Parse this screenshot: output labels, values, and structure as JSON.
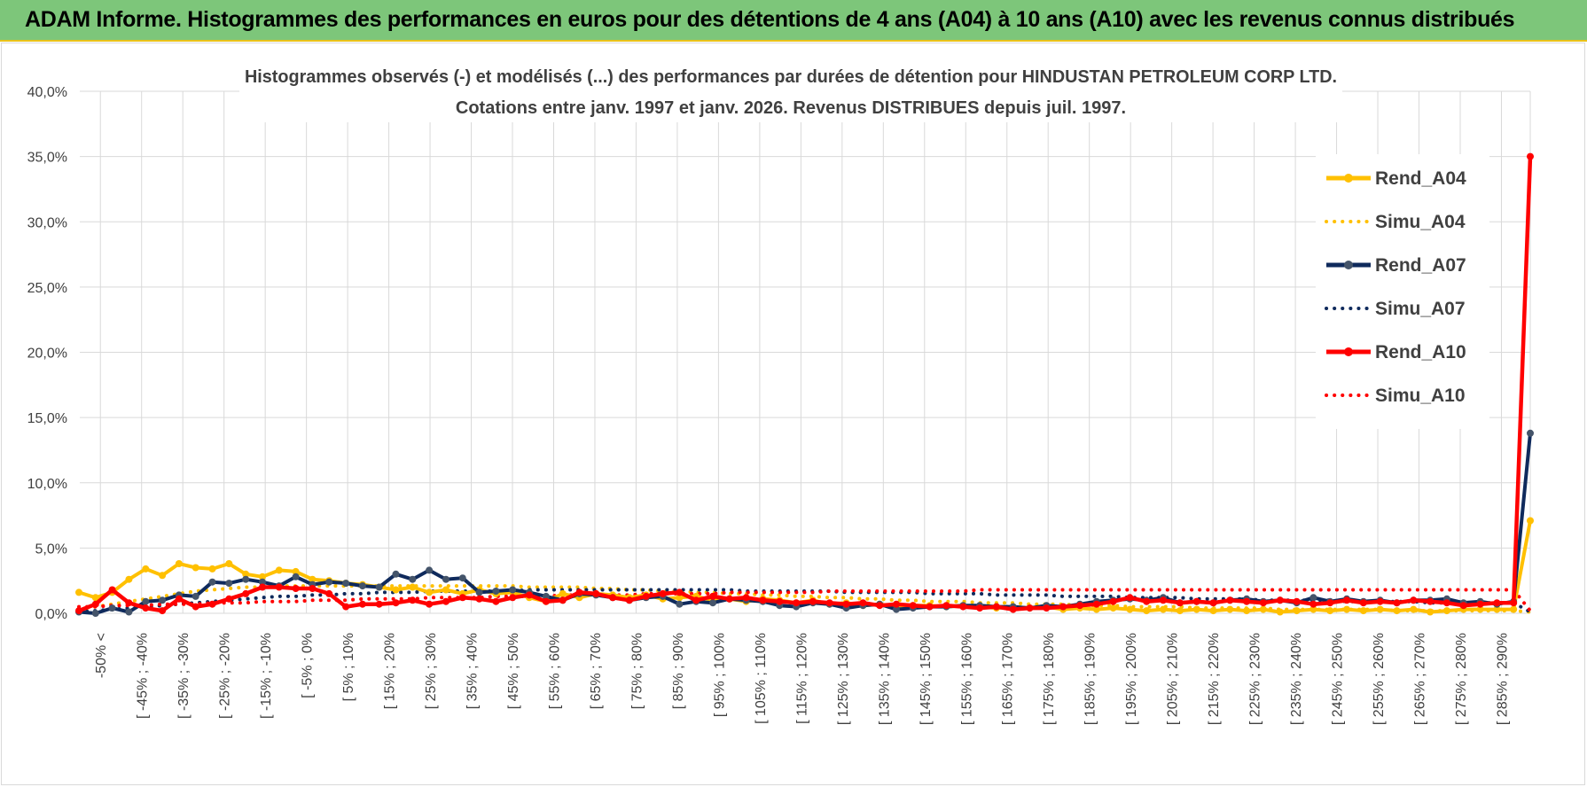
{
  "header": {
    "title": "ADAM Informe. Histogrammes des performances en euros pour des détentions de 4 ans (A04) à 10 ans (A10) avec les revenus connus distribués"
  },
  "chart_data": {
    "type": "line",
    "title_lines": [
      "Histogrammes observés (-) et modélisés (...) des performances par durées de détention pour HINDUSTAN PETROLEUM CORP LTD.",
      "Cotations entre janv. 1997 et janv. 2026. Revenus DISTRIBUES depuis juil. 1997."
    ],
    "ylim": [
      0,
      40
    ],
    "y_ticks": [
      0,
      5,
      10,
      15,
      20,
      25,
      30,
      35,
      40
    ],
    "y_tick_labels": [
      "0,0%",
      "5,0%",
      "10,0%",
      "15,0%",
      "20,0%",
      "25,0%",
      "30,0%",
      "35,0%",
      "40,0%"
    ],
    "x_labels": [
      "-50% <",
      "[ -45% ; -40%",
      "[ -35% ; -30%",
      "[ -25% ; -20%",
      "[ -15% ; -10%",
      "[ -5% ; 0%",
      "[ 5% ; 10%",
      "[ 15% ; 20%",
      "[ 25% ; 30%",
      "[ 35% ; 40%",
      "[ 45% ; 50%",
      "[ 55% ; 60%",
      "[ 65% ; 70%",
      "[ 75% ; 80%",
      "[ 85% ; 90%",
      "[ 95% ; 100%",
      "[ 105% ; 110%",
      "[ 115% ; 120%",
      "[ 125% ; 130%",
      "[ 135% ; 140%",
      "[ 145% ; 150%",
      "[ 155% ; 160%",
      "[ 165% ; 170%",
      "[ 175% ; 180%",
      "[ 185% ; 190%",
      "[ 195% ; 200%",
      "[ 205% ; 210%",
      "[ 215% ; 220%",
      "[ 225% ; 230%",
      "[ 235% ; 240%",
      "[ 245% ; 250%",
      "[ 255% ; 260%",
      "[ 265% ; 270%",
      "[ 275% ; 280%",
      "[ 285% ; 290%"
    ],
    "legend_position": "right",
    "grid": true,
    "series": [
      {
        "name": "Rend_A04",
        "style": "solid",
        "color": "#ffc000",
        "values": [
          1.6,
          1.2,
          1.6,
          2.6,
          3.4,
          2.9,
          3.8,
          3.5,
          3.4,
          3.8,
          3.0,
          2.8,
          3.3,
          3.2,
          2.6,
          2.5,
          2.3,
          2.2,
          2.0,
          1.8,
          2.0,
          1.6,
          1.8,
          1.5,
          1.8,
          1.5,
          1.6,
          1.2,
          0.9,
          1.5,
          1.2,
          1.5,
          1.4,
          1.2,
          1.4,
          1.1,
          1.2,
          1.3,
          1.0,
          1.1,
          0.9,
          1.1,
          1.0,
          0.8,
          1.0,
          0.7,
          0.8,
          0.6,
          0.7,
          0.5,
          0.6,
          0.6,
          0.5,
          0.6,
          0.5,
          0.4,
          0.5,
          0.4,
          0.5,
          0.3,
          0.4,
          0.3,
          0.4,
          0.3,
          0.2,
          0.3,
          0.2,
          0.3,
          0.2,
          0.3,
          0.2,
          0.3,
          0.1,
          0.2,
          0.3,
          0.2,
          0.3,
          0.2,
          0.3,
          0.2,
          0.3,
          0.1,
          0.2,
          0.3,
          0.3,
          0.3,
          0.3,
          7.1
        ]
      },
      {
        "name": "Simu_A04",
        "style": "dotted",
        "color": "#ffc000",
        "values": [
          0.3,
          0.5,
          0.7,
          0.9,
          1.1,
          1.3,
          1.5,
          1.7,
          1.8,
          1.9,
          2.0,
          2.0,
          2.1,
          2.1,
          2.1,
          2.1,
          2.1,
          2.1,
          2.1,
          2.1,
          2.1,
          2.1,
          2.1,
          2.1,
          2.1,
          2.1,
          2.1,
          2.0,
          2.0,
          2.0,
          2.0,
          1.9,
          1.9,
          1.8,
          1.8,
          1.7,
          1.7,
          1.6,
          1.6,
          1.5,
          1.5,
          1.4,
          1.4,
          1.3,
          1.3,
          1.2,
          1.2,
          1.1,
          1.1,
          1.0,
          1.0,
          0.9,
          0.9,
          0.9,
          0.8,
          0.8,
          0.8,
          0.7,
          0.7,
          0.7,
          0.6,
          0.6,
          0.6,
          0.5,
          0.5,
          0.5,
          0.5,
          0.4,
          0.4,
          0.4,
          0.4,
          0.4,
          0.3,
          0.3,
          0.3,
          0.3,
          0.3,
          0.3,
          0.3,
          0.2,
          0.2,
          0.2,
          0.2,
          0.2,
          0.2,
          0.2,
          0.2,
          0.1
        ]
      },
      {
        "name": "Rend_A07",
        "style": "solid",
        "color": "#0f2a5c",
        "values": [
          0.1,
          0.0,
          0.4,
          0.1,
          0.9,
          1.0,
          1.4,
          1.3,
          2.4,
          2.3,
          2.6,
          2.4,
          2.1,
          2.8,
          2.2,
          2.4,
          2.3,
          2.1,
          2.0,
          3.0,
          2.6,
          3.3,
          2.6,
          2.7,
          1.6,
          1.7,
          1.8,
          1.6,
          1.3,
          1.0,
          1.5,
          1.4,
          1.2,
          1.0,
          1.2,
          1.3,
          0.7,
          0.9,
          0.8,
          1.1,
          1.0,
          0.9,
          0.6,
          0.5,
          0.8,
          0.7,
          0.4,
          0.6,
          0.7,
          0.3,
          0.4,
          0.5,
          0.5,
          0.6,
          0.6,
          0.5,
          0.5,
          0.4,
          0.6,
          0.5,
          0.7,
          0.9,
          1.0,
          1.1,
          1.0,
          1.2,
          0.8,
          0.9,
          0.8,
          1.0,
          1.1,
          0.9,
          1.0,
          0.8,
          1.2,
          0.9,
          1.1,
          0.9,
          1.0,
          0.8,
          1.0,
          1.0,
          1.1,
          0.8,
          0.9,
          0.7,
          0.9,
          13.8
        ]
      },
      {
        "name": "Simu_A07",
        "style": "dotted",
        "color": "#0f2a5c",
        "values": [
          0.1,
          0.2,
          0.3,
          0.4,
          0.5,
          0.6,
          0.7,
          0.8,
          0.9,
          1.0,
          1.1,
          1.2,
          1.3,
          1.3,
          1.4,
          1.4,
          1.5,
          1.5,
          1.6,
          1.6,
          1.6,
          1.7,
          1.7,
          1.7,
          1.7,
          1.7,
          1.7,
          1.8,
          1.8,
          1.8,
          1.8,
          1.8,
          1.8,
          1.8,
          1.8,
          1.8,
          1.8,
          1.8,
          1.8,
          1.8,
          1.7,
          1.7,
          1.7,
          1.7,
          1.7,
          1.7,
          1.6,
          1.6,
          1.6,
          1.6,
          1.6,
          1.5,
          1.5,
          1.5,
          1.5,
          1.4,
          1.4,
          1.4,
          1.4,
          1.3,
          1.3,
          1.3,
          1.3,
          1.2,
          1.2,
          1.2,
          1.2,
          1.1,
          1.1,
          1.1,
          1.1,
          1.0,
          1.0,
          1.0,
          1.0,
          1.0,
          0.9,
          0.9,
          0.9,
          0.9,
          0.9,
          0.8,
          0.8,
          0.8,
          0.8,
          0.8,
          0.8,
          0.1
        ]
      },
      {
        "name": "Rend_A10",
        "style": "solid",
        "color": "#ff0000",
        "values": [
          0.2,
          0.7,
          1.8,
          0.8,
          0.4,
          0.2,
          1.1,
          0.5,
          0.7,
          1.1,
          1.5,
          2.0,
          2.0,
          1.9,
          1.9,
          1.5,
          0.5,
          0.7,
          0.7,
          0.8,
          1.0,
          0.7,
          0.9,
          1.2,
          1.1,
          0.9,
          1.2,
          1.4,
          0.9,
          1.0,
          1.6,
          1.5,
          1.2,
          1.0,
          1.3,
          1.5,
          1.6,
          1.0,
          1.3,
          1.1,
          1.2,
          1.0,
          0.9,
          0.8,
          0.9,
          0.8,
          0.7,
          0.8,
          0.6,
          0.7,
          0.6,
          0.5,
          0.6,
          0.5,
          0.4,
          0.5,
          0.3,
          0.4,
          0.4,
          0.5,
          0.6,
          0.7,
          0.9,
          1.2,
          0.9,
          1.0,
          0.8,
          0.9,
          0.8,
          1.0,
          0.9,
          0.8,
          1.0,
          0.9,
          0.7,
          0.8,
          1.0,
          0.8,
          0.9,
          0.8,
          1.0,
          0.9,
          0.8,
          0.6,
          0.7,
          0.8,
          0.8,
          35.0
        ]
      },
      {
        "name": "Simu_A10",
        "style": "dotted",
        "color": "#ff0000",
        "values": [
          0.5,
          0.5,
          0.6,
          0.6,
          0.6,
          0.7,
          0.7,
          0.7,
          0.8,
          0.8,
          0.8,
          0.9,
          0.9,
          0.9,
          1.0,
          1.0,
          1.0,
          1.1,
          1.1,
          1.1,
          1.1,
          1.2,
          1.2,
          1.2,
          1.2,
          1.3,
          1.3,
          1.3,
          1.3,
          1.4,
          1.4,
          1.4,
          1.4,
          1.4,
          1.5,
          1.5,
          1.5,
          1.5,
          1.5,
          1.6,
          1.6,
          1.6,
          1.6,
          1.6,
          1.6,
          1.7,
          1.7,
          1.7,
          1.7,
          1.7,
          1.7,
          1.7,
          1.7,
          1.7,
          1.8,
          1.8,
          1.8,
          1.8,
          1.8,
          1.8,
          1.8,
          1.8,
          1.8,
          1.8,
          1.8,
          1.8,
          1.8,
          1.8,
          1.8,
          1.8,
          1.8,
          1.8,
          1.8,
          1.8,
          1.8,
          1.8,
          1.8,
          1.8,
          1.8,
          1.8,
          1.8,
          1.8,
          1.8,
          1.8,
          1.8,
          1.8,
          1.8,
          0.2
        ]
      }
    ]
  }
}
